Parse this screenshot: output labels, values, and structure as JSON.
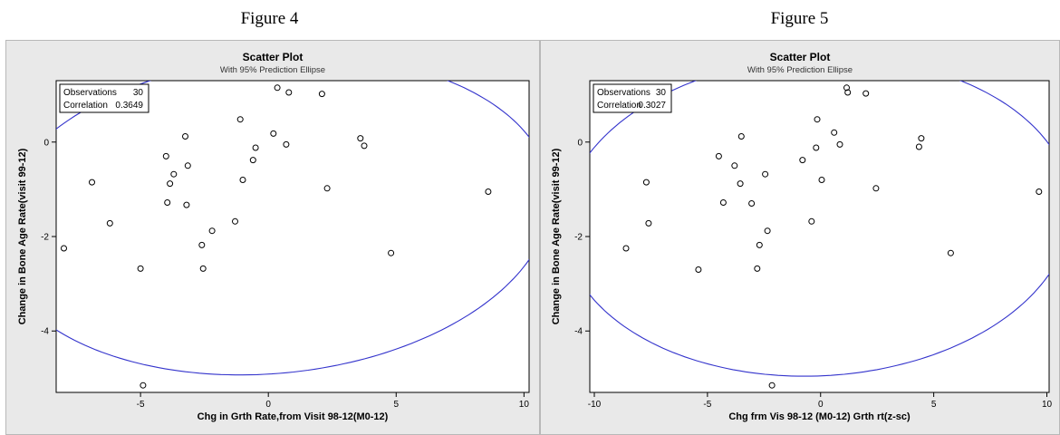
{
  "captions": [
    "Figure 4",
    "Figure 5"
  ],
  "chart_data": [
    {
      "type": "scatter",
      "title": "Scatter Plot",
      "subtitle": "With 95% Prediction Ellipse",
      "xlabel": "Chg in Grth Rate,from Visit 98-12(M0-12)",
      "ylabel": "Change in Bone Age Rate(visit 99-12)",
      "xlim": [
        -8.3,
        10.2
      ],
      "ylim": [
        -5.3,
        1.3
      ],
      "xticks": [
        -5,
        0,
        5,
        10
      ],
      "yticks": [
        -4,
        -2,
        0
      ],
      "xtick_labels": [
        "-5",
        "0",
        "5",
        "10"
      ],
      "ytick_labels": [
        "-4",
        "-2",
        "0"
      ],
      "stats": {
        "observations_label": "Observations",
        "observations": "30",
        "correlation_label": "Correlation",
        "correlation": "0.3649"
      },
      "ellipse_color": "#3333cc",
      "ellipse": {
        "cx": 0.14,
        "cy": -1.55,
        "rx": 11.1,
        "ry": 3.3,
        "angle_deg": 19.5
      },
      "points": [
        [
          -8.0,
          -2.25
        ],
        [
          -6.9,
          -0.85
        ],
        [
          -6.2,
          -1.72
        ],
        [
          -5.0,
          -2.68
        ],
        [
          -4.9,
          -5.15
        ],
        [
          -4.0,
          -0.3
        ],
        [
          -3.95,
          -1.28
        ],
        [
          -3.85,
          -0.88
        ],
        [
          -3.7,
          -0.68
        ],
        [
          -3.25,
          0.12
        ],
        [
          -3.2,
          -1.33
        ],
        [
          -3.15,
          -0.5
        ],
        [
          -2.6,
          -2.18
        ],
        [
          -2.55,
          -2.68
        ],
        [
          -2.2,
          -1.88
        ],
        [
          -1.3,
          -1.68
        ],
        [
          -1.1,
          0.48
        ],
        [
          -1.0,
          -0.8
        ],
        [
          -0.6,
          -0.38
        ],
        [
          -0.5,
          -0.12
        ],
        [
          0.2,
          0.18
        ],
        [
          0.35,
          1.15
        ],
        [
          0.7,
          -0.05
        ],
        [
          0.8,
          1.05
        ],
        [
          2.1,
          1.02
        ],
        [
          2.3,
          -0.98
        ],
        [
          3.6,
          0.08
        ],
        [
          3.75,
          -0.08
        ],
        [
          4.8,
          -2.35
        ],
        [
          8.6,
          -1.05
        ]
      ]
    },
    {
      "type": "scatter",
      "title": "Scatter Plot",
      "subtitle": "With 95% Prediction Ellipse",
      "xlabel": "Chg frm Vis 98-12 (M0-12) Grth rt(z-sc)",
      "ylabel": "Change in Bone Age Rate(visit 99-12)",
      "xlim": [
        -10.2,
        10.1
      ],
      "ylim": [
        -5.3,
        1.3
      ],
      "xticks": [
        -10,
        -5,
        0,
        5,
        10
      ],
      "yticks": [
        -4,
        -2,
        0
      ],
      "xtick_labels": [
        "-10",
        "-5",
        "0",
        "5",
        "10"
      ],
      "ytick_labels": [
        "-4",
        "-2",
        "0"
      ],
      "stats": {
        "observations_label": "Observations",
        "observations": "30",
        "correlation_label": "Correlation",
        "correlation": "0.3027"
      },
      "ellipse_color": "#3333cc",
      "ellipse": {
        "cx": -0.15,
        "cy": -1.58,
        "rx": 11.3,
        "ry": 3.35,
        "angle_deg": 16.5
      },
      "points": [
        [
          -8.6,
          -2.25
        ],
        [
          -7.7,
          -0.85
        ],
        [
          -7.6,
          -1.72
        ],
        [
          -5.4,
          -2.7
        ],
        [
          -4.5,
          -0.3
        ],
        [
          -4.3,
          -1.28
        ],
        [
          -3.8,
          -0.5
        ],
        [
          -3.55,
          -0.88
        ],
        [
          -3.5,
          0.12
        ],
        [
          -3.05,
          -1.3
        ],
        [
          -2.8,
          -2.68
        ],
        [
          -2.7,
          -2.18
        ],
        [
          -2.45,
          -0.68
        ],
        [
          -2.35,
          -1.88
        ],
        [
          -2.15,
          -5.15
        ],
        [
          -0.8,
          -0.38
        ],
        [
          -0.4,
          -1.68
        ],
        [
          -0.2,
          -0.12
        ],
        [
          -0.15,
          0.48
        ],
        [
          0.05,
          -0.8
        ],
        [
          0.6,
          0.2
        ],
        [
          0.85,
          -0.05
        ],
        [
          1.15,
          1.15
        ],
        [
          1.2,
          1.05
        ],
        [
          2.0,
          1.03
        ],
        [
          2.45,
          -0.98
        ],
        [
          4.35,
          -0.1
        ],
        [
          4.45,
          0.08
        ],
        [
          5.75,
          -2.35
        ],
        [
          9.65,
          -1.05
        ]
      ]
    }
  ]
}
